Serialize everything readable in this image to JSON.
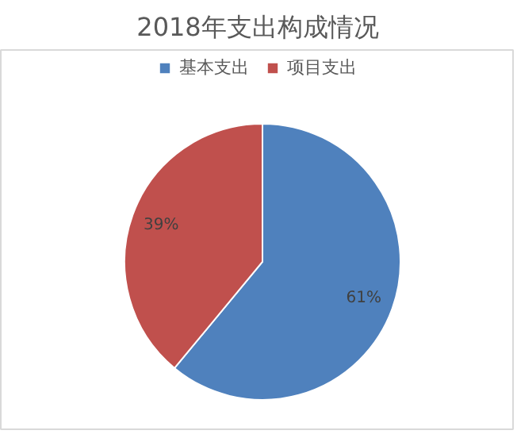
{
  "chart_data": {
    "type": "pie",
    "title": "2018年支出构成情况",
    "categories": [
      "基本支出",
      "项目支出"
    ],
    "values": [
      61,
      39
    ],
    "colors": [
      "#4f81bd",
      "#c0504d"
    ],
    "value_labels": [
      "61%",
      "39%"
    ],
    "legend": "top"
  }
}
